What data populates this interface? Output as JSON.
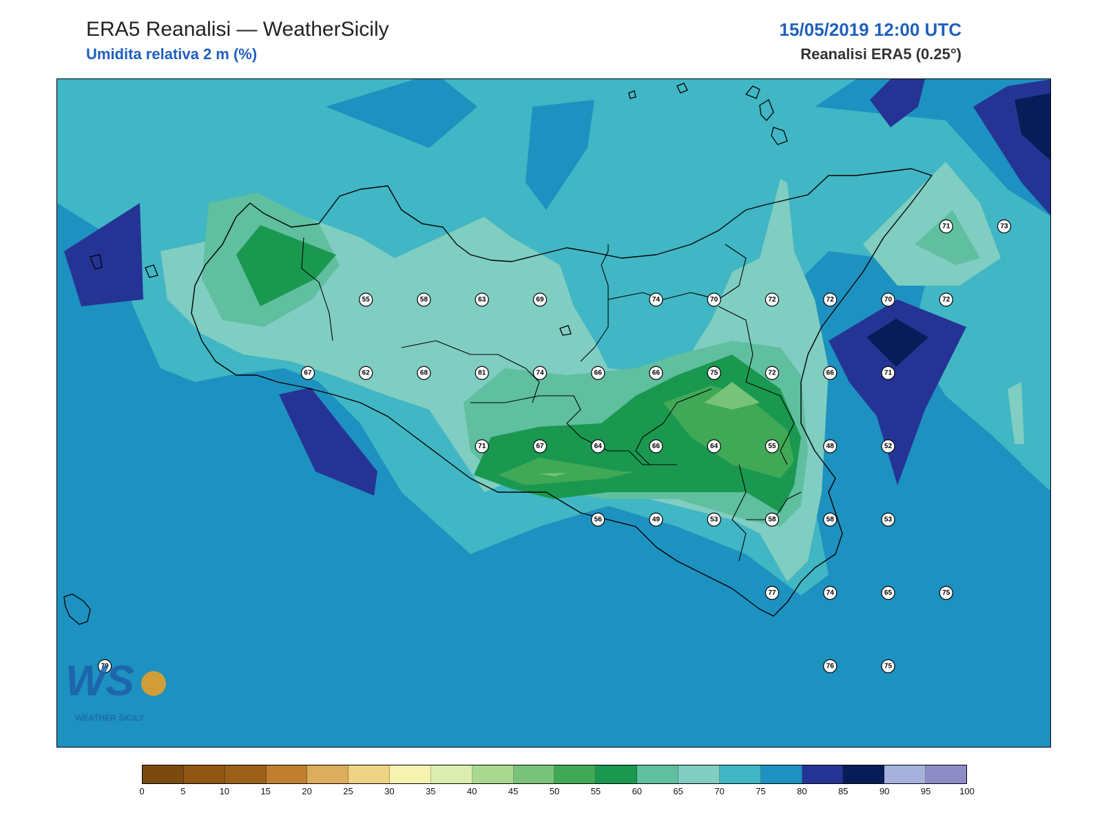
{
  "header": {
    "title": "ERA5 Reanalisi — WeatherSicily",
    "subtitle": "Umidita relativa 2 m (%)",
    "datetime": "15/05/2019 12:00 UTC",
    "source": "Reanalisi ERA5 (0.25°)"
  },
  "colors": {
    "subtitle": "#1f5fbf",
    "datetime": "#1f5fbf",
    "levels": [
      "#7a4a0f",
      "#8f5614",
      "#9b6018",
      "#c07f2f",
      "#dcad5c",
      "#efd384",
      "#f6f3b0",
      "#dbeeb0",
      "#a9d98e",
      "#78c27a",
      "#40a956",
      "#1a9850",
      "#5fbf9f",
      "#80cdc1",
      "#41b6c4",
      "#1d91c0",
      "#253494",
      "#081d58",
      "#a6b2dc",
      "#8e8cc7"
    ]
  },
  "colorbar": {
    "ticks": [
      "0",
      "5",
      "10",
      "15",
      "20",
      "25",
      "30",
      "35",
      "40",
      "45",
      "50",
      "55",
      "60",
      "65",
      "70",
      "75",
      "80",
      "85",
      "90",
      "95",
      "100"
    ]
  },
  "map": {
    "observations": [
      {
        "lon": 12.45,
        "lat": 38.2,
        "value": "55"
      },
      {
        "lon": 12.95,
        "lat": 38.2,
        "value": "58"
      },
      {
        "lon": 13.45,
        "lat": 38.2,
        "value": "63"
      },
      {
        "lon": 13.95,
        "lat": 38.2,
        "value": "69"
      },
      {
        "lon": 14.95,
        "lat": 38.2,
        "value": "74"
      },
      {
        "lon": 15.45,
        "lat": 38.2,
        "value": "70"
      },
      {
        "lon": 15.95,
        "lat": 38.2,
        "value": "72"
      },
      {
        "lon": 16.45,
        "lat": 38.2,
        "value": "72"
      },
      {
        "lon": 16.95,
        "lat": 38.2,
        "value": "70"
      },
      {
        "lon": 17.45,
        "lat": 38.2,
        "value": "72"
      },
      {
        "lon": 17.45,
        "lat": 38.45,
        "value": "71"
      },
      {
        "lon": 17.95,
        "lat": 38.45,
        "value": "73"
      },
      {
        "lon": 11.95,
        "lat": 37.95,
        "value": "67"
      },
      {
        "lon": 12.45,
        "lat": 37.95,
        "value": "62"
      },
      {
        "lon": 12.95,
        "lat": 37.95,
        "value": "68"
      },
      {
        "lon": 13.45,
        "lat": 37.95,
        "value": "81"
      },
      {
        "lon": 13.95,
        "lat": 37.95,
        "value": "74"
      },
      {
        "lon": 14.45,
        "lat": 37.95,
        "value": "66"
      },
      {
        "lon": 14.95,
        "lat": 37.95,
        "value": "66"
      },
      {
        "lon": 15.45,
        "lat": 37.95,
        "value": "75"
      },
      {
        "lon": 15.95,
        "lat": 37.95,
        "value": "72"
      },
      {
        "lon": 16.45,
        "lat": 37.95,
        "value": "66"
      },
      {
        "lon": 16.95,
        "lat": 37.95,
        "value": "71"
      },
      {
        "lon": 13.45,
        "lat": 37.7,
        "value": "71"
      },
      {
        "lon": 13.95,
        "lat": 37.7,
        "value": "67"
      },
      {
        "lon": 14.45,
        "lat": 37.7,
        "value": "64"
      },
      {
        "lon": 14.95,
        "lat": 37.7,
        "value": "66"
      },
      {
        "lon": 15.45,
        "lat": 37.7,
        "value": "64"
      },
      {
        "lon": 15.95,
        "lat": 37.7,
        "value": "55"
      },
      {
        "lon": 16.45,
        "lat": 37.7,
        "value": "48"
      },
      {
        "lon": 16.95,
        "lat": 37.7,
        "value": "52"
      },
      {
        "lon": 14.45,
        "lat": 37.45,
        "value": "56"
      },
      {
        "lon": 14.95,
        "lat": 37.45,
        "value": "49"
      },
      {
        "lon": 15.45,
        "lat": 37.45,
        "value": "53"
      },
      {
        "lon": 15.95,
        "lat": 37.45,
        "value": "58"
      },
      {
        "lon": 16.45,
        "lat": 37.45,
        "value": "58"
      },
      {
        "lon": 16.95,
        "lat": 37.45,
        "value": "53"
      },
      {
        "lon": 15.95,
        "lat": 37.2,
        "value": "77"
      },
      {
        "lon": 16.45,
        "lat": 37.2,
        "value": "74"
      },
      {
        "lon": 16.95,
        "lat": 37.2,
        "value": "65"
      },
      {
        "lon": 17.45,
        "lat": 37.2,
        "value": "75"
      },
      {
        "lon": 16.45,
        "lat": 36.95,
        "value": "76"
      },
      {
        "lon": 16.95,
        "lat": 36.95,
        "value": "75"
      },
      {
        "lon": 10.2,
        "lat": 36.95,
        "value": "79"
      }
    ]
  },
  "logo": {
    "text": "WEATHER SICILY"
  }
}
